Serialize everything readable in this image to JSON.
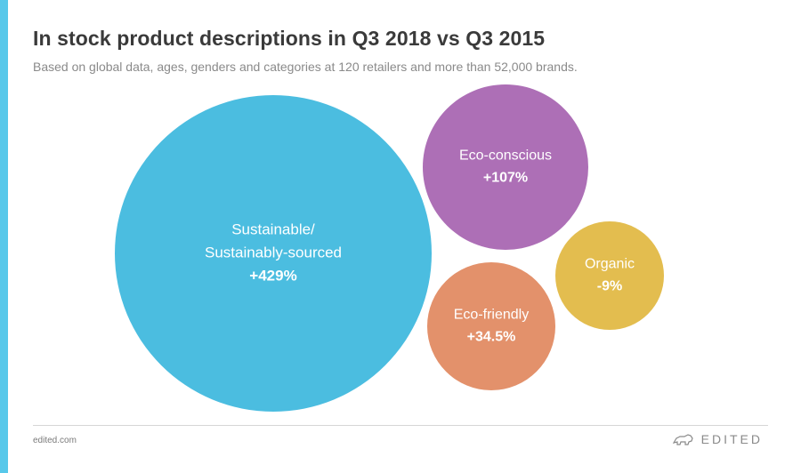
{
  "chart_data": {
    "type": "bubble",
    "title": "In stock product descriptions in Q3 2018 vs Q3 2015",
    "subtitle": "Based on global data, ages, genders and categories at 120 retailers and more than 52,000 brands.",
    "series": [
      {
        "name": "Sustainable/ Sustainably-sourced",
        "label_lines": [
          "Sustainable/",
          "Sustainably-sourced"
        ],
        "value_label": "+429%",
        "value": 429,
        "color": "#4bbde0"
      },
      {
        "name": "Eco-conscious",
        "label_lines": [
          "Eco-conscious"
        ],
        "value_label": "+107%",
        "value": 107,
        "color": "#ad6fb6"
      },
      {
        "name": "Organic",
        "label_lines": [
          "Organic"
        ],
        "value_label": "-9%",
        "value": -9,
        "color": "#e3bd4f"
      },
      {
        "name": "Eco-friendly",
        "label_lines": [
          "Eco-friendly"
        ],
        "value_label": "+34.5%",
        "value": 34.5,
        "color": "#e3916b"
      }
    ]
  },
  "footer": {
    "source": "edited.com",
    "brand": "EDITED"
  },
  "colors": {
    "accent_bar": "#57c8ea"
  }
}
